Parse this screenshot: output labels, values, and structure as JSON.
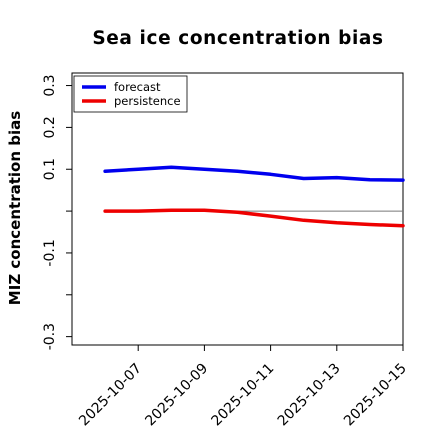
{
  "chart_data": {
    "type": "line",
    "title": "Sea ice concentration bias",
    "ylabel": "MIZ concentration bias",
    "xlabel": "",
    "x": [
      "2025-10-06",
      "2025-10-07",
      "2025-10-08",
      "2025-10-09",
      "2025-10-10",
      "2025-10-11",
      "2025-10-12",
      "2025-10-13",
      "2025-10-14",
      "2025-10-15"
    ],
    "x_tick_labels": [
      {
        "date": "2025-10-07",
        "label": "2025-10-07",
        "color": "#2e8b2e"
      },
      {
        "date": "2025-10-09",
        "label": "2025-10-09",
        "color": "#000000"
      },
      {
        "date": "2025-10-11",
        "label": "2025-10-11",
        "color": "#000000"
      },
      {
        "date": "2025-10-13",
        "label": "2025-10-13",
        "color": "#000000"
      },
      {
        "date": "2025-10-15",
        "label": "2025-10-15",
        "color": "#000000"
      }
    ],
    "xlim": [
      "2025-10-05",
      "2025-10-15"
    ],
    "ylim": [
      -0.32,
      0.33
    ],
    "y_ticks": [
      -0.3,
      -0.2,
      -0.1,
      0,
      0.1,
      0.2,
      0.3
    ],
    "y_tick_labels": [
      "-0.3",
      "",
      "-0.1",
      "",
      "0.1",
      "0.2",
      "0.3"
    ],
    "zero_line": true,
    "grid": false,
    "legend_position": "top-left",
    "series": [
      {
        "name": "forecast",
        "color": "#0000ee",
        "values": [
          0.095,
          0.1,
          0.105,
          0.1,
          0.095,
          0.088,
          0.078,
          0.08,
          0.075,
          0.074
        ]
      },
      {
        "name": "persistence",
        "color": "#ee0000",
        "values": [
          0.0,
          0.0,
          0.002,
          0.002,
          -0.003,
          -0.012,
          -0.022,
          -0.028,
          -0.032,
          -0.035
        ]
      }
    ]
  }
}
